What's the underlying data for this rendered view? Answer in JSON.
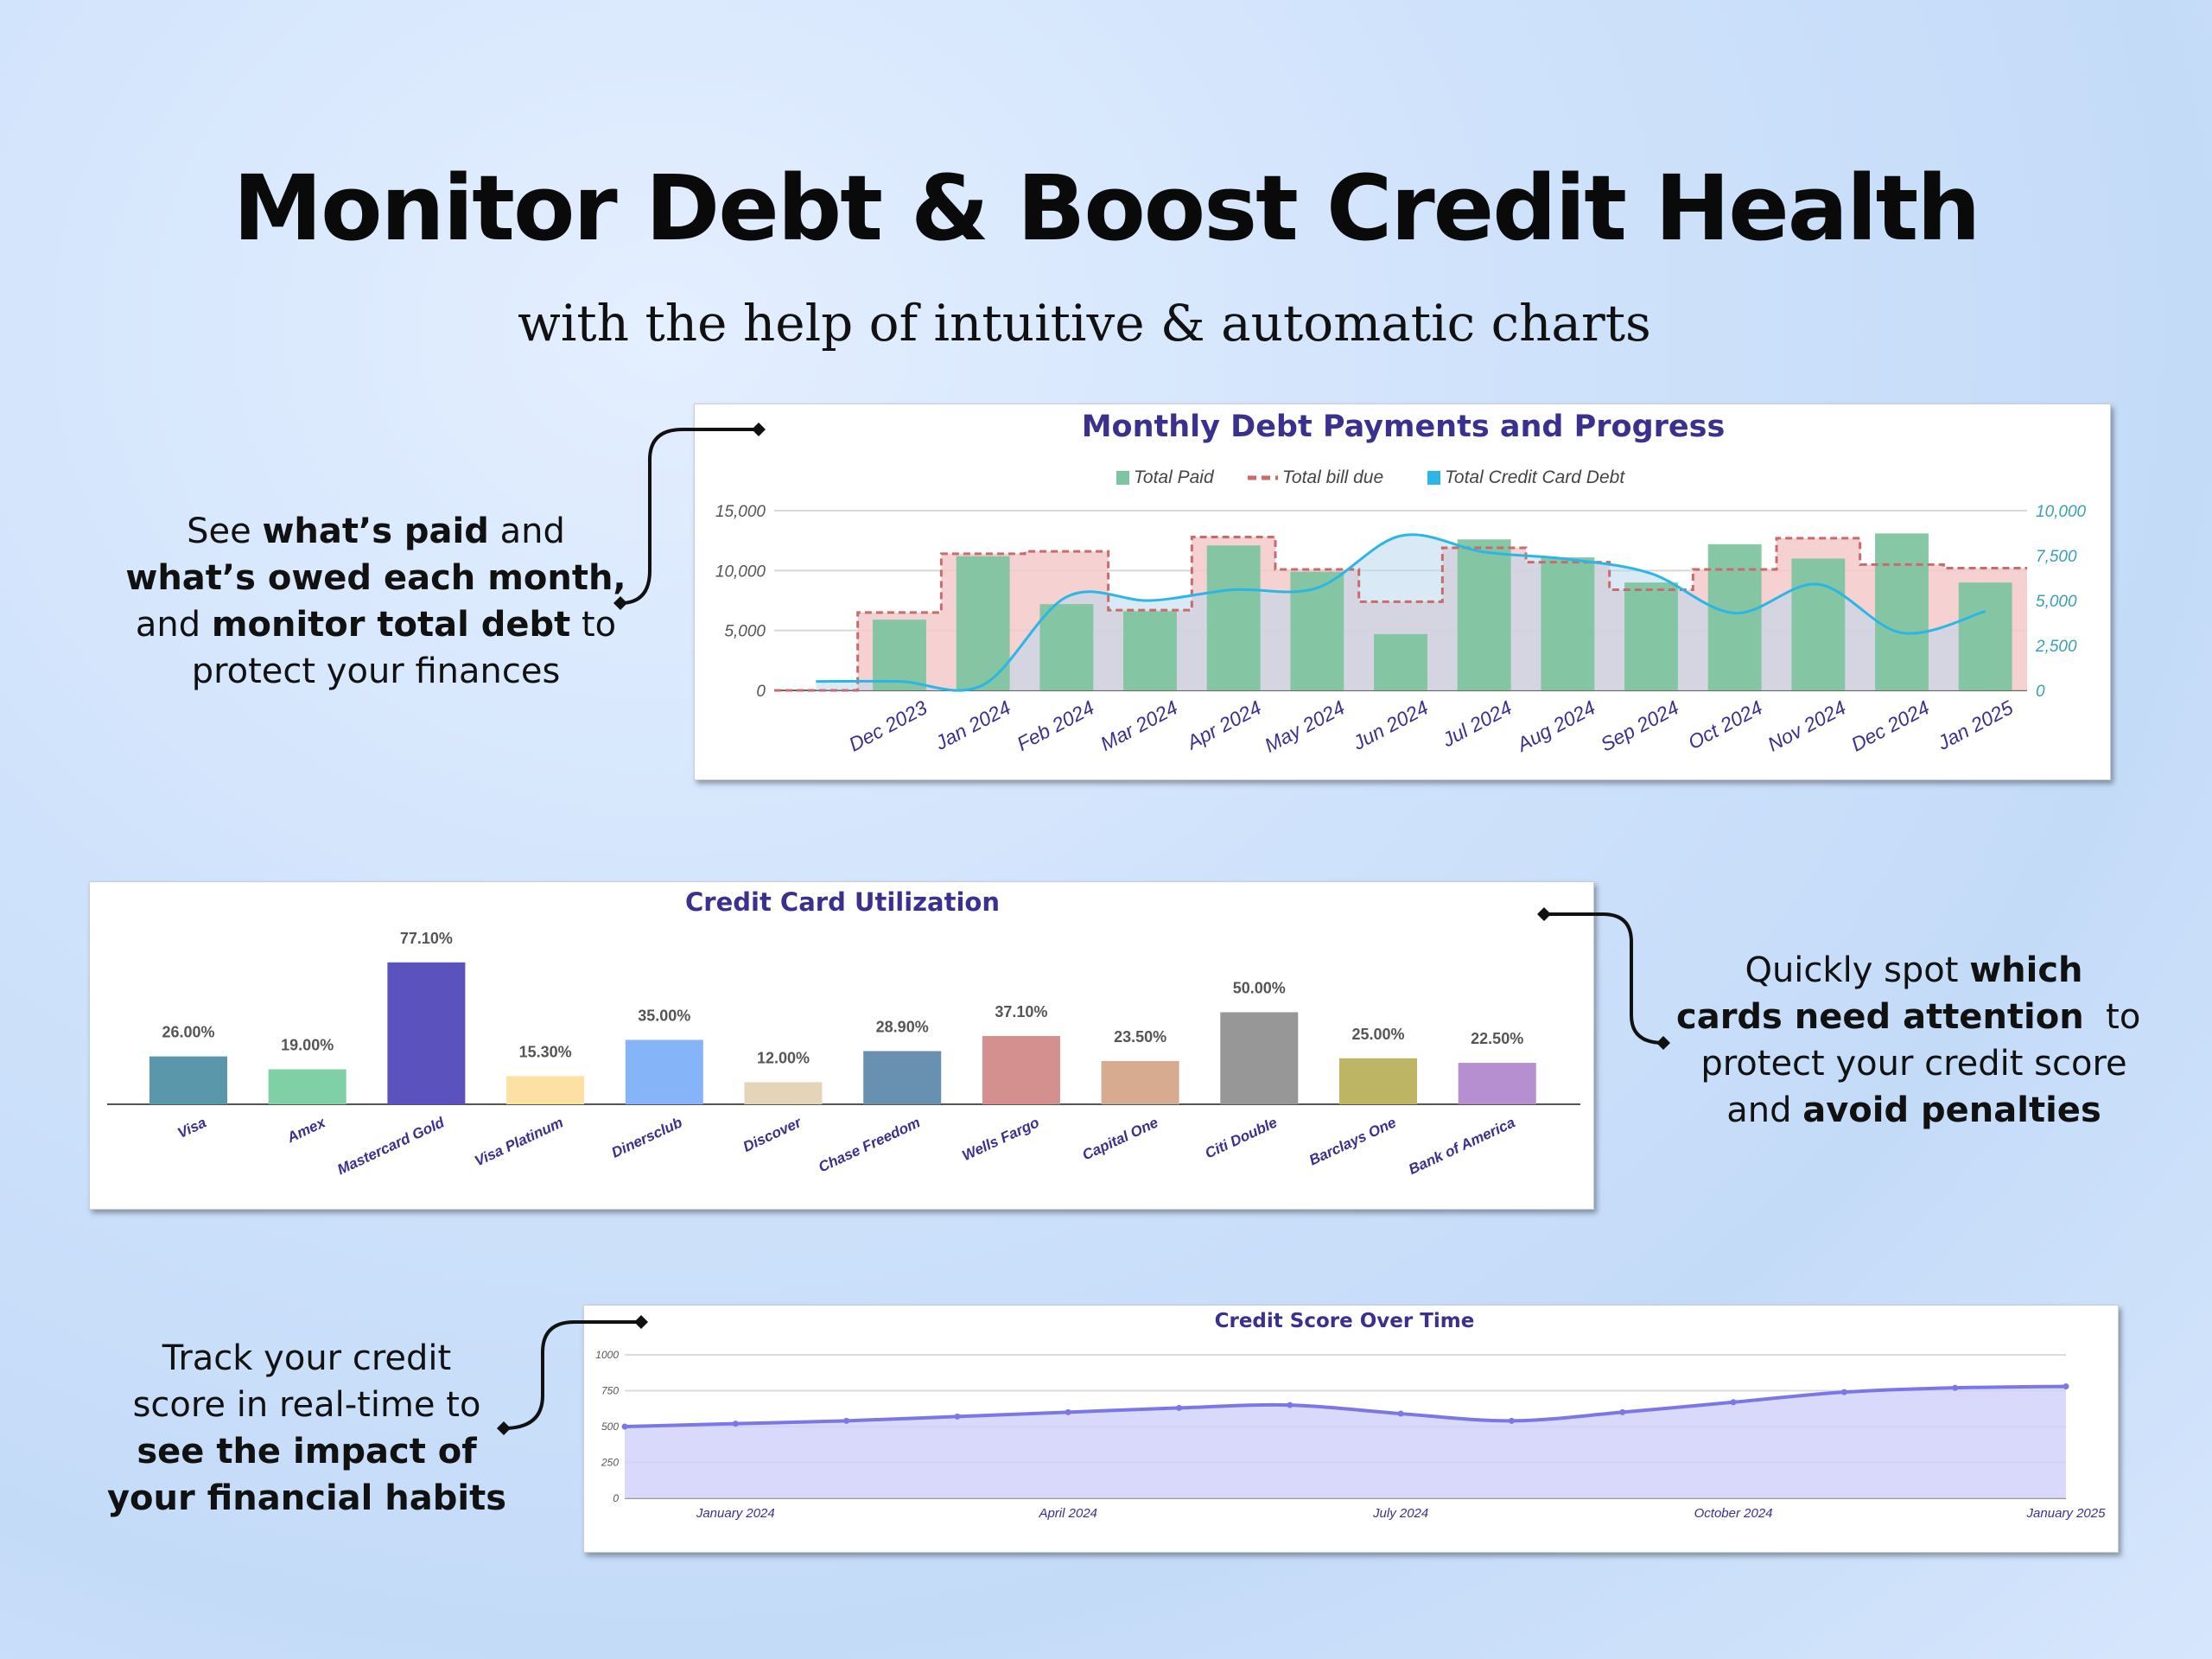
{
  "header": {
    "title": "Monitor Debt & Boost Credit Health",
    "subtitle": "with the help of intuitive & automatic charts"
  },
  "notes": {
    "paid": [
      "See ",
      "what’s paid",
      " and ",
      "what’s owed each month,",
      " and ",
      "monitor total debt",
      " to ",
      "protect your finances"
    ],
    "cards": [
      "Quickly spot ",
      "which",
      "cards need attention",
      "  to ",
      "protect your credit score",
      "and ",
      "avoid penalties"
    ],
    "score": [
      "Track your credit",
      "score in real-time to",
      "see the impact of",
      "your financial habits"
    ]
  },
  "colors": {
    "paid": "#7fc4a0",
    "bill": "#c96b6b",
    "billFill": "#f3c9c9",
    "debt": "#2bb6e6",
    "util": "#6a60d6",
    "score": "#7b78e6"
  },
  "chart_data": [
    {
      "type": "bar+line",
      "title": "Monthly Debt Payments and Progress",
      "legend": [
        "Total Paid",
        "Total bill due",
        "Total Credit Card Debt"
      ],
      "legend_position": "top",
      "categories": [
        "",
        "Dec 2023",
        "Jan 2024",
        "Feb 2024",
        "Mar 2024",
        "Apr 2024",
        "May 2024",
        "Jun 2024",
        "Jul 2024",
        "Aug 2024",
        "Sep 2024",
        "Oct 2024",
        "Nov 2024",
        "Dec 2024",
        "Jan 2025"
      ],
      "series": [
        {
          "name": "Total Paid",
          "axis": "left",
          "values": [
            0,
            5900,
            11200,
            7200,
            6600,
            12100,
            9900,
            4700,
            12600,
            11100,
            9000,
            12200,
            11000,
            13100,
            9000
          ]
        },
        {
          "name": "Total bill due",
          "axis": "left",
          "values": [
            0,
            6500,
            11400,
            11600,
            6700,
            12800,
            10100,
            7400,
            11900,
            10700,
            8400,
            10100,
            12700,
            10500,
            10200
          ]
        },
        {
          "name": "Total Credit Card Debt",
          "axis": "right",
          "values": [
            500,
            500,
            300,
            5200,
            5000,
            5600,
            5700,
            8600,
            7700,
            7300,
            6500,
            4300,
            5900,
            3200,
            4400
          ]
        }
      ],
      "yticks_left": [
        "0",
        "5,000",
        "10,000",
        "15,000"
      ],
      "ylim_left": [
        0,
        15000
      ],
      "yticks_right": [
        "0",
        "2,500",
        "5,000",
        "7,500",
        "10,000"
      ],
      "ylim_right": [
        0,
        10000
      ]
    },
    {
      "type": "bar",
      "title": "Credit Card Utilization",
      "categories": [
        "Visa",
        "Amex",
        "Mastercard Gold",
        "Visa Platinum",
        "Dinersclub",
        "Discover",
        "Chase Freedom",
        "Wells Fargo",
        "Capital One",
        "Citi Double",
        "Barclays One",
        "Bank of America"
      ],
      "values": [
        26.0,
        19.0,
        77.1,
        15.3,
        35.0,
        12.0,
        28.9,
        37.1,
        23.5,
        50.0,
        25.0,
        22.5
      ],
      "labels": [
        "26.00%",
        "19.00%",
        "77.10%",
        "15.30%",
        "35.00%",
        "12.00%",
        "28.90%",
        "37.10%",
        "23.50%",
        "50.00%",
        "25.00%",
        "22.50%"
      ],
      "colors": [
        "#5b97ab",
        "#7fd0a4",
        "#5b52bd",
        "#fde0a4",
        "#86b4f8",
        "#e4d5b8",
        "#6890b0",
        "#d48f8f",
        "#d6ab90",
        "#979797",
        "#bdb564",
        "#b58fd0"
      ]
    },
    {
      "type": "area",
      "title": "Credit Score Over Time",
      "x": [
        "Dec 2023",
        "Jan 2024",
        "Feb 2024",
        "Mar 2024",
        "Apr 2024",
        "May 2024",
        "Jun 2024",
        "Jul 2024",
        "Aug 2024",
        "Sep 2024",
        "Oct 2024",
        "Nov 2024",
        "Dec 2024",
        "Jan 2025"
      ],
      "values": [
        500,
        520,
        540,
        570,
        600,
        630,
        650,
        590,
        540,
        600,
        670,
        740,
        770,
        780
      ],
      "xticks": [
        "January 2024",
        "April 2024",
        "July 2024",
        "October 2024",
        "January 2025"
      ],
      "xtick_index": [
        1,
        4,
        7,
        10,
        13
      ],
      "yticks": [
        "0",
        "250",
        "500",
        "750",
        "1000"
      ],
      "ylim": [
        0,
        1000
      ]
    }
  ]
}
